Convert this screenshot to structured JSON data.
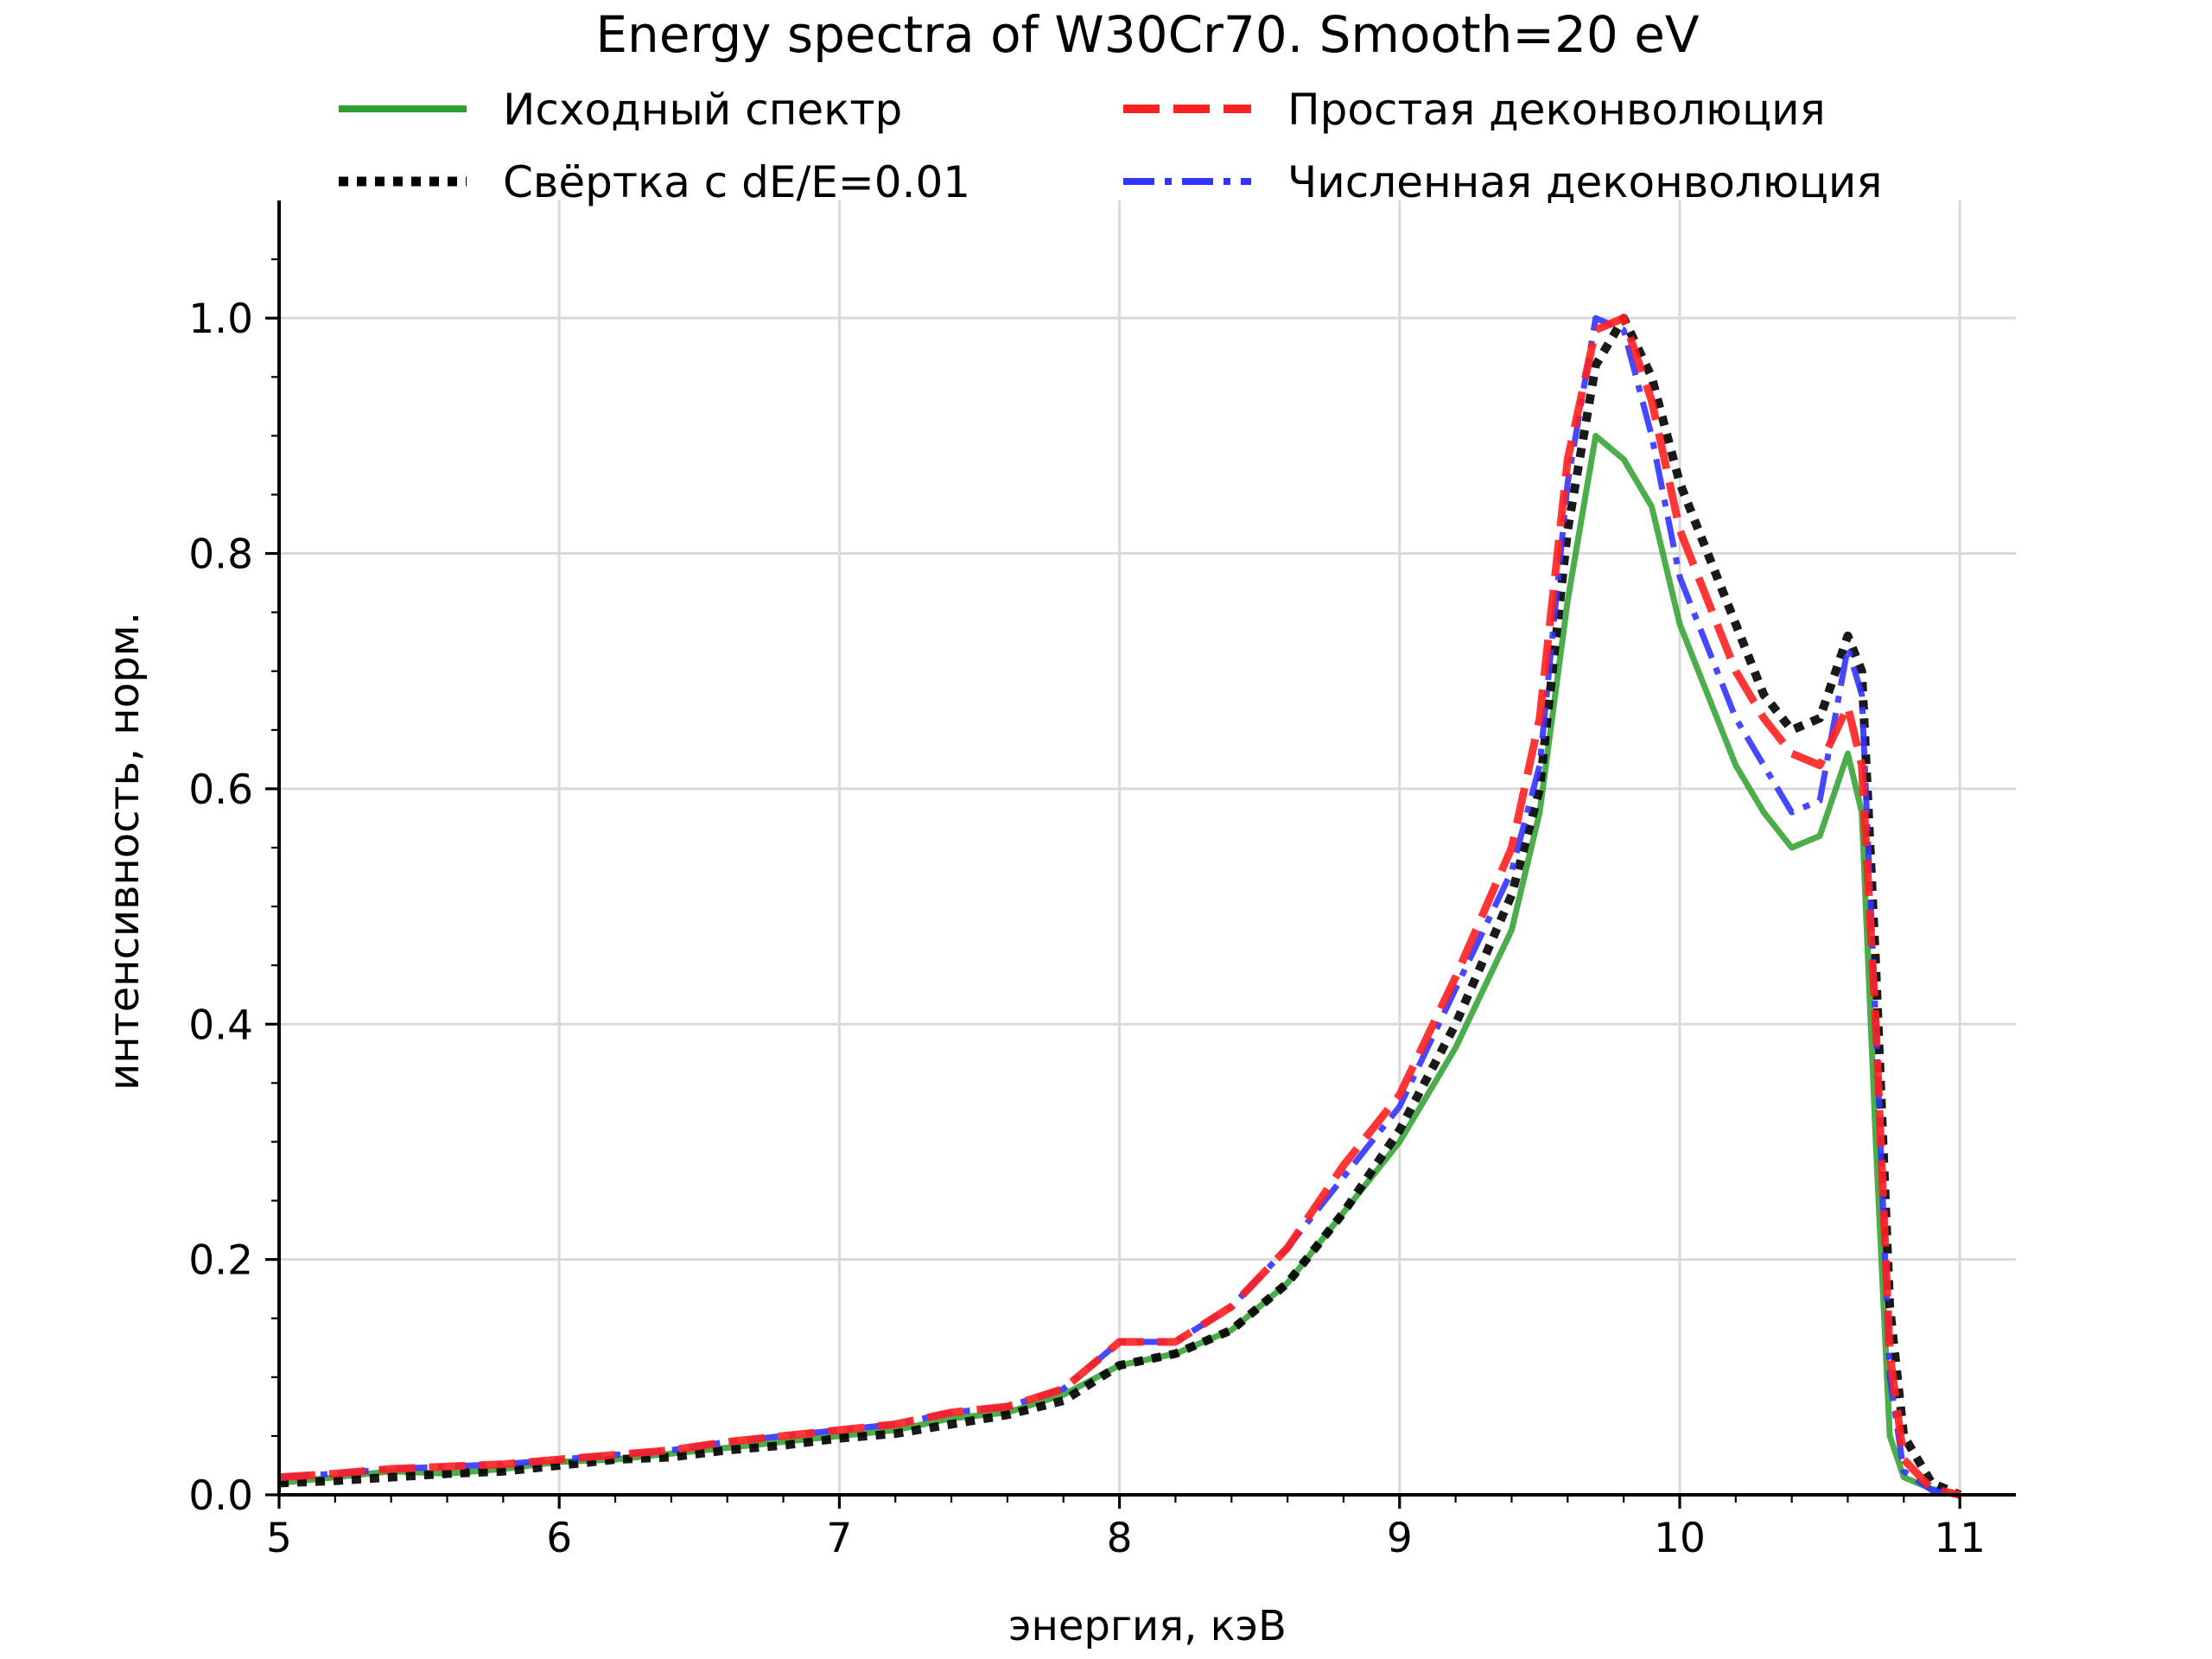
{
  "chart_data": {
    "type": "line",
    "title": "Energy spectra of W30Cr70. Smooth=20 eV",
    "xlabel": "энергия, кэВ",
    "ylabel": "интенсивность, норм.",
    "xlim": [
      5.0,
      11.2
    ],
    "ylim": [
      0.0,
      1.1
    ],
    "xticks": [
      5,
      6,
      7,
      8,
      9,
      10,
      11
    ],
    "xtick_labels": [
      "5",
      "6",
      "7",
      "8",
      "9",
      "10",
      "11"
    ],
    "yticks": [
      0.0,
      0.2,
      0.4,
      0.6,
      0.8,
      1.0
    ],
    "ytick_labels": [
      "0.0",
      "0.2",
      "0.4",
      "0.6",
      "0.8",
      "1.0"
    ],
    "grid": true,
    "legend_position": "top",
    "series": [
      {
        "name": "Исходный спектр",
        "color": "#2ca02c",
        "style": "solid",
        "x": [
          5.0,
          5.2,
          5.4,
          5.6,
          5.8,
          6.0,
          6.2,
          6.4,
          6.6,
          6.8,
          7.0,
          7.2,
          7.4,
          7.6,
          7.8,
          8.0,
          8.2,
          8.4,
          8.6,
          8.8,
          9.0,
          9.2,
          9.4,
          9.5,
          9.6,
          9.7,
          9.8,
          9.9,
          10.0,
          10.1,
          10.2,
          10.3,
          10.4,
          10.5,
          10.6,
          10.65,
          10.7,
          10.75,
          10.8,
          10.9,
          11.0
        ],
        "y": [
          0.01,
          0.015,
          0.02,
          0.018,
          0.022,
          0.028,
          0.03,
          0.035,
          0.04,
          0.045,
          0.05,
          0.055,
          0.065,
          0.07,
          0.085,
          0.11,
          0.12,
          0.14,
          0.18,
          0.24,
          0.3,
          0.38,
          0.48,
          0.58,
          0.76,
          0.9,
          0.88,
          0.84,
          0.74,
          0.68,
          0.62,
          0.58,
          0.55,
          0.56,
          0.63,
          0.58,
          0.3,
          0.05,
          0.015,
          0.005,
          0.0
        ]
      },
      {
        "name": "Простая деконволюция",
        "color": "#ff2020",
        "style": "dashed",
        "x": [
          5.0,
          5.2,
          5.4,
          5.6,
          5.8,
          6.0,
          6.2,
          6.4,
          6.6,
          6.8,
          7.0,
          7.2,
          7.4,
          7.6,
          7.8,
          8.0,
          8.2,
          8.4,
          8.6,
          8.8,
          9.0,
          9.2,
          9.4,
          9.5,
          9.6,
          9.7,
          9.8,
          9.9,
          10.0,
          10.1,
          10.2,
          10.3,
          10.4,
          10.5,
          10.6,
          10.65,
          10.7,
          10.75,
          10.8,
          10.9,
          11.0
        ],
        "y": [
          0.015,
          0.018,
          0.022,
          0.024,
          0.026,
          0.03,
          0.034,
          0.038,
          0.045,
          0.05,
          0.055,
          0.06,
          0.07,
          0.075,
          0.09,
          0.13,
          0.13,
          0.16,
          0.21,
          0.28,
          0.34,
          0.44,
          0.55,
          0.66,
          0.88,
          0.99,
          1.0,
          0.93,
          0.82,
          0.76,
          0.7,
          0.66,
          0.63,
          0.62,
          0.67,
          0.62,
          0.4,
          0.12,
          0.03,
          0.005,
          0.0
        ]
      },
      {
        "name": "Свёртка с dE/E=0.01",
        "color": "#000000",
        "style": "dotted",
        "x": [
          5.0,
          5.2,
          5.4,
          5.6,
          5.8,
          6.0,
          6.2,
          6.4,
          6.6,
          6.8,
          7.0,
          7.2,
          7.4,
          7.6,
          7.8,
          8.0,
          8.2,
          8.4,
          8.6,
          8.8,
          9.0,
          9.2,
          9.4,
          9.5,
          9.6,
          9.7,
          9.8,
          9.9,
          10.0,
          10.1,
          10.2,
          10.3,
          10.4,
          10.5,
          10.6,
          10.65,
          10.7,
          10.75,
          10.8,
          10.9,
          11.0
        ],
        "y": [
          0.01,
          0.012,
          0.015,
          0.018,
          0.02,
          0.025,
          0.03,
          0.032,
          0.038,
          0.042,
          0.048,
          0.052,
          0.06,
          0.068,
          0.08,
          0.11,
          0.12,
          0.14,
          0.18,
          0.24,
          0.31,
          0.4,
          0.51,
          0.6,
          0.82,
          0.96,
          1.0,
          0.95,
          0.86,
          0.8,
          0.74,
          0.68,
          0.65,
          0.66,
          0.73,
          0.7,
          0.45,
          0.16,
          0.05,
          0.01,
          0.0
        ]
      },
      {
        "name": "Численная деконволюция",
        "color": "#3333ff",
        "style": "dashdot",
        "x": [
          5.0,
          5.2,
          5.4,
          5.6,
          5.8,
          6.0,
          6.2,
          6.4,
          6.6,
          6.8,
          7.0,
          7.2,
          7.4,
          7.6,
          7.8,
          8.0,
          8.2,
          8.4,
          8.6,
          8.8,
          9.0,
          9.2,
          9.4,
          9.5,
          9.6,
          9.7,
          9.8,
          9.9,
          10.0,
          10.1,
          10.2,
          10.3,
          10.4,
          10.5,
          10.6,
          10.65,
          10.7,
          10.75,
          10.8,
          10.9,
          11.0
        ],
        "y": [
          0.015,
          0.018,
          0.022,
          0.024,
          0.026,
          0.03,
          0.034,
          0.038,
          0.045,
          0.05,
          0.055,
          0.06,
          0.07,
          0.075,
          0.09,
          0.13,
          0.13,
          0.16,
          0.21,
          0.27,
          0.33,
          0.43,
          0.53,
          0.62,
          0.86,
          1.0,
          0.99,
          0.9,
          0.78,
          0.72,
          0.66,
          0.62,
          0.58,
          0.59,
          0.72,
          0.68,
          0.4,
          0.1,
          0.02,
          0.004,
          0.0
        ]
      }
    ]
  }
}
